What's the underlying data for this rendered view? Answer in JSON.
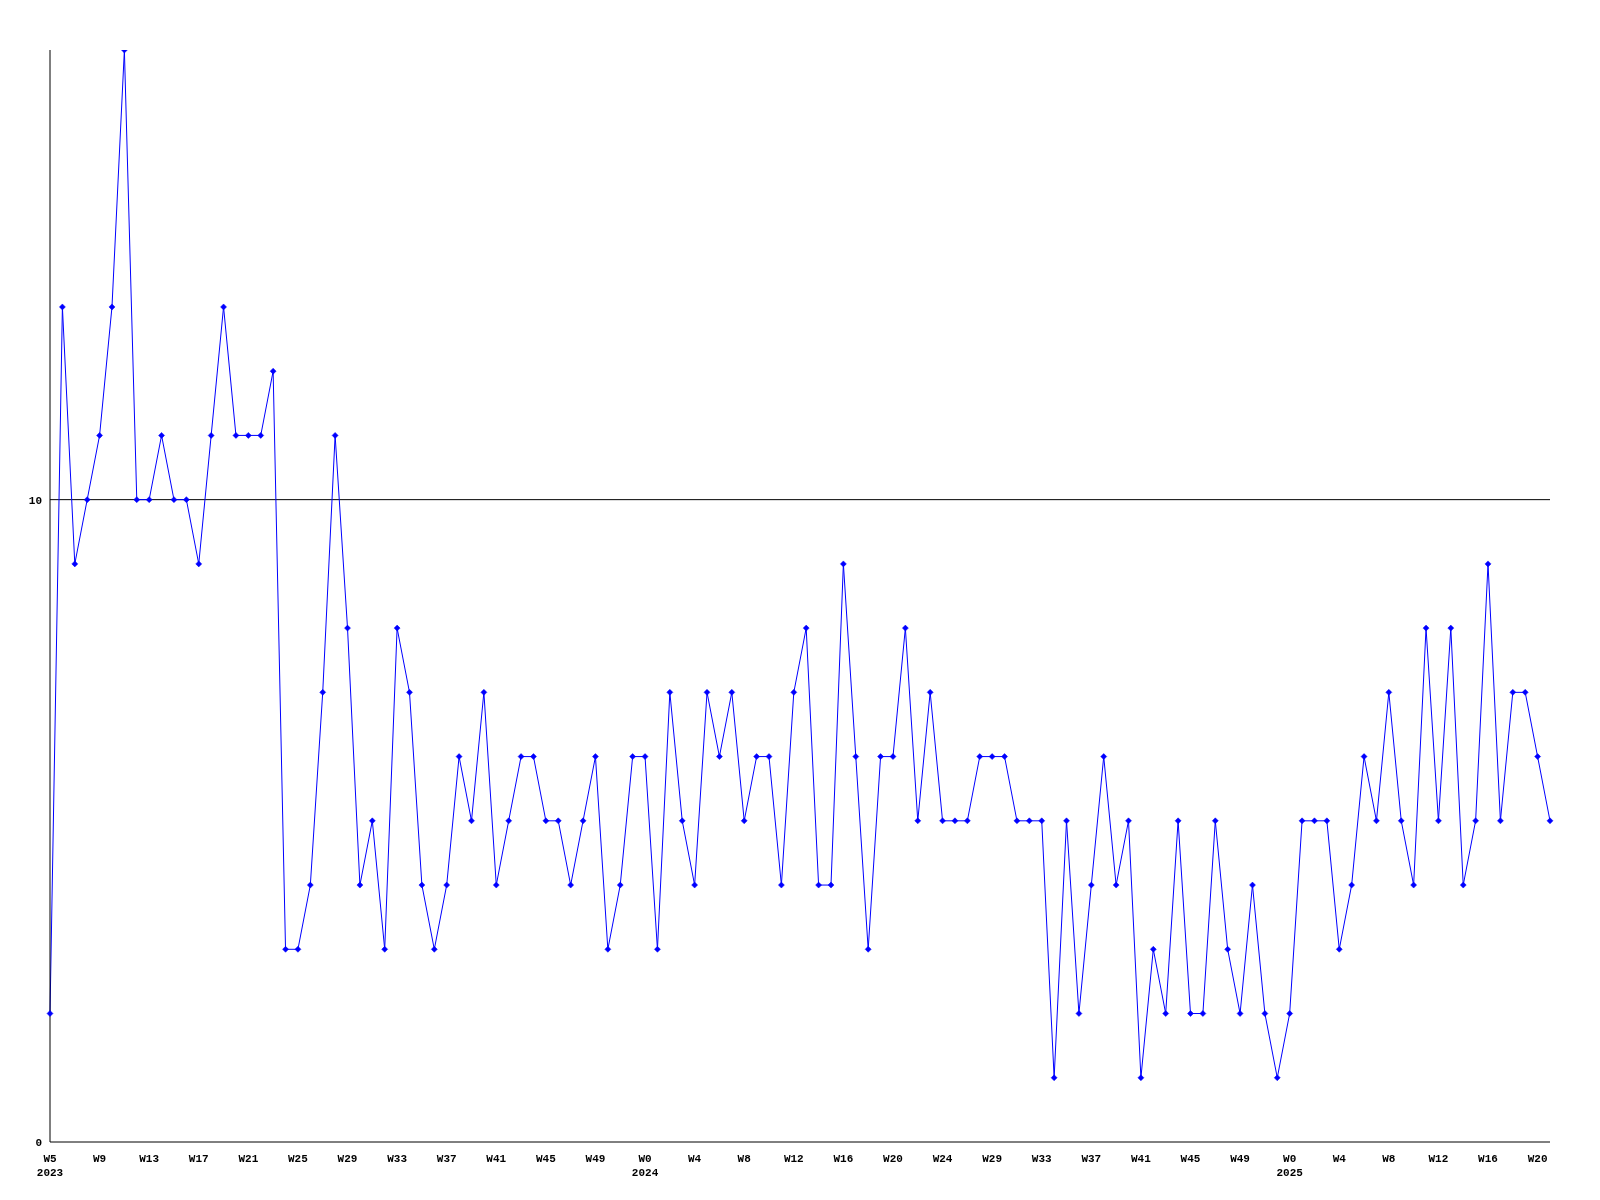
{
  "chart_data": {
    "type": "line",
    "categories": [
      "W5\n2023",
      null,
      null,
      null,
      "W9",
      null,
      null,
      null,
      "W13",
      null,
      null,
      null,
      "W17",
      null,
      null,
      null,
      "W21",
      null,
      null,
      null,
      "W25",
      null,
      null,
      null,
      "W29",
      null,
      null,
      null,
      "W33",
      null,
      null,
      null,
      "W37",
      null,
      null,
      null,
      "W41",
      null,
      null,
      null,
      "W45",
      null,
      null,
      null,
      "W49",
      null,
      null,
      null,
      "W0\n2024",
      null,
      null,
      null,
      "W4",
      null,
      null,
      null,
      "W8",
      null,
      null,
      null,
      "W12",
      null,
      null,
      null,
      "W16",
      null,
      null,
      null,
      "W20",
      null,
      null,
      null,
      "W24",
      null,
      null,
      null,
      "W29",
      null,
      null,
      null,
      "W33",
      null,
      null,
      null,
      "W37",
      null,
      null,
      null,
      "W41",
      null,
      null,
      null,
      "W45",
      null,
      null,
      null,
      "W49",
      null,
      null,
      null,
      "W0\n2025",
      null,
      null,
      null,
      "W4",
      null,
      null,
      null,
      "W8",
      null,
      null,
      null,
      "W12",
      null,
      null,
      null,
      "W16",
      null,
      null,
      null,
      "W20",
      null
    ],
    "series": [
      {
        "color": "#0000ff",
        "values": [
          2,
          13,
          9,
          10,
          11,
          13,
          17,
          10,
          10,
          11,
          10,
          10,
          9,
          11,
          13,
          11,
          11,
          11,
          12,
          3,
          3,
          4,
          7,
          11,
          8,
          4,
          5,
          3,
          8,
          7,
          4,
          3,
          4,
          6,
          5,
          7,
          4,
          5,
          6,
          6,
          5,
          5,
          4,
          5,
          6,
          3,
          4,
          6,
          6,
          3,
          7,
          5,
          4,
          7,
          6,
          7,
          5,
          6,
          6,
          4,
          7,
          8,
          4,
          4,
          9,
          6,
          3,
          6,
          6,
          8,
          5,
          7,
          5,
          5,
          5,
          6,
          6,
          6,
          5,
          5,
          5,
          1,
          5,
          2,
          4,
          6,
          4,
          5,
          1,
          3,
          2,
          5,
          2,
          2,
          5,
          3,
          2,
          4,
          2,
          1,
          2,
          5,
          5,
          5,
          3,
          4,
          6,
          5,
          7,
          5,
          4,
          8,
          5,
          8,
          4,
          5,
          9,
          5,
          7,
          7,
          6,
          5
        ]
      }
    ],
    "ylim": [
      0,
      17
    ],
    "yticks": [
      0,
      10
    ],
    "grid": "y",
    "marker": "diamond",
    "line_style": "solid"
  }
}
